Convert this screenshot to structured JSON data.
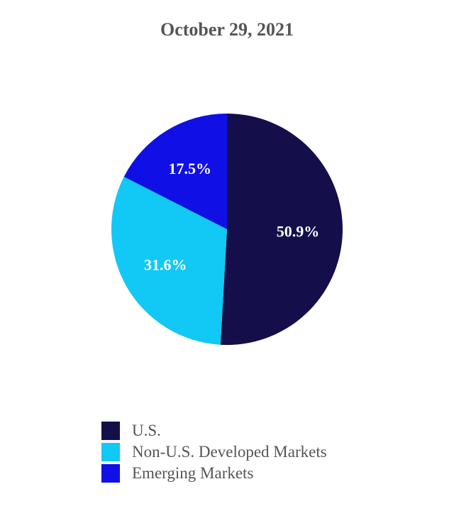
{
  "chart_data": {
    "type": "pie",
    "title": "October 29, 2021",
    "slices": [
      {
        "name": "U.S.",
        "value": 50.9,
        "label": "50.9%",
        "color": "#140f4a"
      },
      {
        "name": "Non-U.S. Developed Markets",
        "value": 31.6,
        "label": "31.6%",
        "color": "#12c8f5"
      },
      {
        "name": "Emerging Markets",
        "value": 17.5,
        "label": "17.5%",
        "color": "#1010e6"
      }
    ],
    "start_angle": "12 o'clock",
    "direction": "clockwise",
    "legend": {
      "placement": "bottom-left"
    }
  }
}
